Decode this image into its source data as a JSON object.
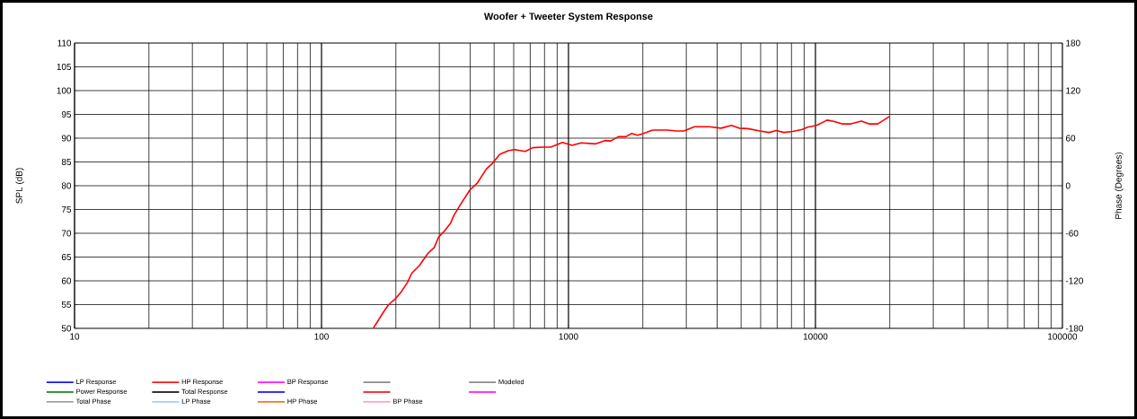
{
  "chart_data": {
    "type": "line",
    "title": "Woofer + Tweeter    System Response",
    "xlabel": null,
    "ylabel": "SPL (dB)",
    "y2label": "Phase (Degrees)",
    "log": "x",
    "grid": true,
    "legend": "bottom",
    "xlim": [
      10,
      100000
    ],
    "xticks": [
      10,
      100,
      1000,
      10000,
      100000
    ],
    "ylim": [
      50,
      110
    ],
    "yticks": [
      50,
      55,
      60,
      65,
      70,
      75,
      80,
      85,
      90,
      95,
      100,
      105,
      110
    ],
    "y2lim": [
      -180,
      180
    ],
    "y2ticks": [
      -180,
      -120,
      -60,
      0,
      60,
      120,
      180
    ],
    "series": [
      {
        "name": "LP Response",
        "color": "#0000ff"
      },
      {
        "name": "HP Response",
        "color": "#ff0000",
        "x": [
          162,
          178,
          187,
          200,
          211,
          223,
          232,
          249,
          270,
          286,
          298,
          315,
          333,
          343,
          367,
          399,
          428,
          465,
          492,
          527,
          573,
          606,
          668,
          716,
          789,
          847,
          946,
          1033,
          1124,
          1291,
          1404,
          1483,
          1591,
          1706,
          1803,
          1906,
          2015,
          2191,
          2518,
          2736,
          2933,
          3233,
          3714,
          4150,
          4573,
          4907,
          5333,
          5961,
          6480,
          6947,
          7448,
          8093,
          8795,
          9301,
          10110,
          11150,
          11950,
          12810,
          13920,
          15350,
          16450,
          17880,
          20000
        ],
        "values": [
          50.0,
          53.4,
          55.0,
          56.3,
          57.8,
          59.7,
          61.6,
          63.2,
          65.8,
          67.0,
          69.2,
          70.5,
          72.1,
          73.7,
          76.2,
          79.1,
          80.6,
          83.5,
          84.7,
          86.6,
          87.4,
          87.6,
          87.2,
          88.0,
          88.1,
          88.1,
          89.1,
          88.5,
          89.0,
          88.8,
          89.5,
          89.4,
          90.3,
          90.3,
          91.0,
          90.6,
          91.0,
          91.7,
          91.7,
          91.5,
          91.5,
          92.4,
          92.4,
          92.1,
          92.7,
          92.1,
          92.0,
          91.5,
          91.2,
          91.6,
          91.2,
          91.4,
          91.8,
          92.3,
          92.7,
          93.8,
          93.5,
          93.0,
          93.0,
          93.6,
          93.0,
          93.0,
          94.6
        ]
      },
      {
        "name": "BP Response",
        "color": "#ff00ff"
      },
      {
        "color": "#808080"
      },
      {
        "name": "Modeled",
        "color": "#808080"
      },
      {
        "name": "Power Response",
        "color": "#008000"
      },
      {
        "name": "Total Response",
        "color": "#000000"
      },
      {
        "color": "#0000ff"
      },
      {
        "color": "#ff0000"
      },
      {
        "color": "#ff00ff"
      },
      {
        "name": "Total Phase",
        "color": "#999999"
      },
      {
        "name": "LP Phase",
        "color": "#99ccff"
      },
      {
        "name": "HP Phase",
        "color": "#ff6600"
      },
      {
        "name": "BP Phase",
        "color": "#ff99cc"
      }
    ]
  }
}
